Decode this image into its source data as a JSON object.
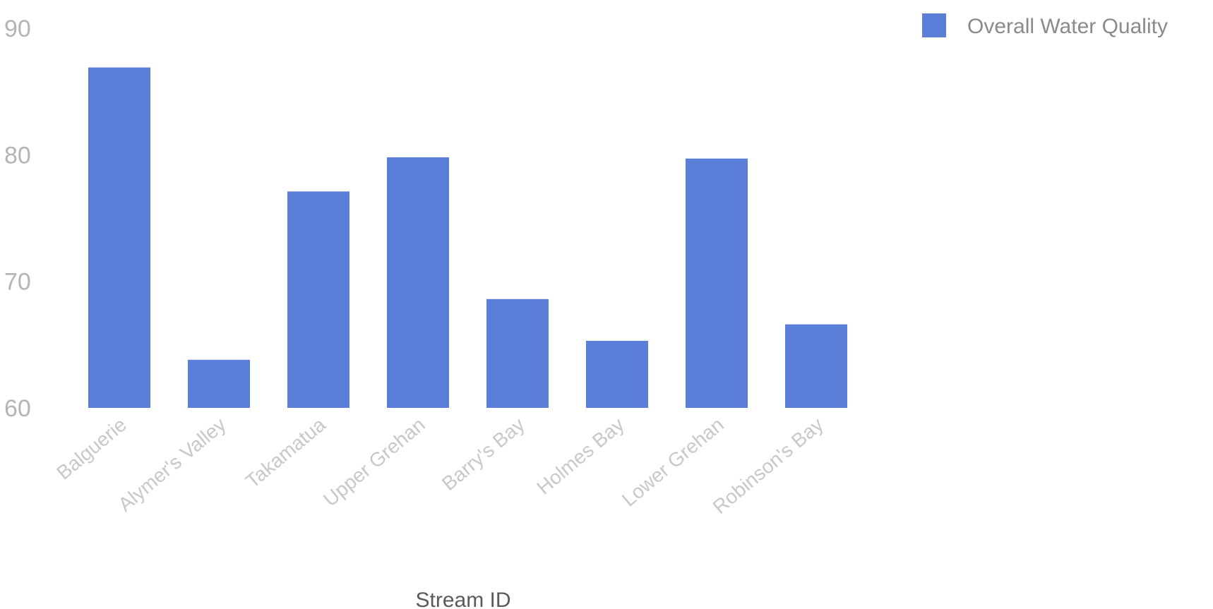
{
  "chart_data": {
    "type": "bar",
    "title": "",
    "xlabel": "Stream ID",
    "ylabel": "",
    "ylim": [
      60,
      90
    ],
    "yticks": [
      60,
      70,
      80,
      90
    ],
    "grid": false,
    "legend_position": "top-right",
    "categories": [
      "Balguerie",
      "Alymer's Valley",
      "Takamatua",
      "Upper Grehan",
      "Barry's Bay",
      "Holmes Bay",
      "Lower Grehan",
      "Robinson's Bay"
    ],
    "series": [
      {
        "name": "Overall Water Quality",
        "color": "#5b7fd8",
        "values": [
          86.9,
          63.8,
          77.1,
          79.8,
          68.6,
          65.3,
          79.7,
          66.6
        ]
      }
    ]
  }
}
